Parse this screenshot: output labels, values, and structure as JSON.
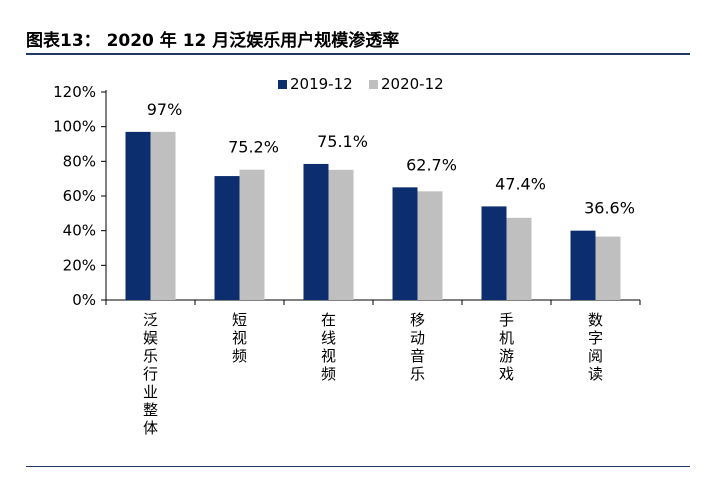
{
  "figure": {
    "title": "图表13：   2020 年 12 月泛娱乐用户规模渗透率"
  },
  "colors": {
    "series_2019": "#0d2e6e",
    "series_2020": "#bfbfbf",
    "axis": "#000000",
    "rule": "#1f3864"
  },
  "chart_data": {
    "type": "bar",
    "categories": [
      "泛娱乐行业整体",
      "短视频",
      "在线视频",
      "移动音乐",
      "手机游戏",
      "数字阅读"
    ],
    "series": [
      {
        "name": "2019-12",
        "values": [
          97,
          71.5,
          78.5,
          65,
          54,
          40
        ]
      },
      {
        "name": "2020-12",
        "values": [
          97,
          75.2,
          75.1,
          62.7,
          47.4,
          36.6
        ]
      }
    ],
    "data_labels": [
      "97%",
      "75.2%",
      "75.1%",
      "62.7%",
      "47.4%",
      "36.6%"
    ],
    "ylim": [
      0,
      120
    ],
    "yticks": [
      "0%",
      "20%",
      "40%",
      "60%",
      "80%",
      "100%",
      "120%"
    ],
    "legend_position": "top",
    "grid": false
  }
}
